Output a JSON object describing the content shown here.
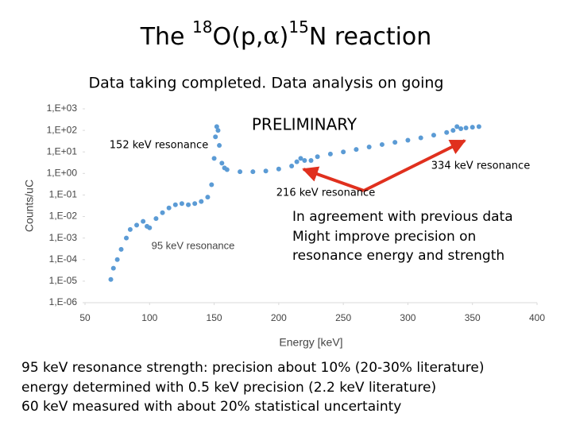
{
  "slide": {
    "title_parts": [
      "The ",
      "18",
      "O(p,",
      "α",
      ")",
      "15",
      "N reaction"
    ],
    "subtitle": "Data taking completed. Data analysis on going",
    "notes": [
      "In agreement with previous data",
      "Might improve precision on",
      "resonance energy and strength"
    ],
    "bullets": [
      "95 keV resonance strength: precision about 10% (20-30% literature)",
      "energy determined with 0.5 keV precision (2.2 keV literature)",
      "60 keV measured with about 20% statistical uncertainty"
    ]
  },
  "chart_data": {
    "type": "scatter",
    "x_label": "Energy [keV]",
    "y_label": "Counts/uC",
    "annotations": [
      "PRELIMINARY",
      "152 keV resonance",
      "334 keV resonance",
      "216 keV resonance",
      "95 keV resonance"
    ],
    "log_y": true,
    "color": "#5b9bd5",
    "xlim": [
      50,
      400
    ],
    "xticks": [
      50,
      100,
      150,
      200,
      250,
      300,
      350,
      400
    ],
    "ylim": [
      1e-06,
      1000
    ],
    "yticks": [
      {
        "value": 1e-06,
        "label": "1,E-06"
      },
      {
        "value": 1e-05,
        "label": "1,E-05"
      },
      {
        "value": 0.0001,
        "label": "1,E-04"
      },
      {
        "value": 0.001,
        "label": "1,E-03"
      },
      {
        "value": 0.01,
        "label": "1,E-02"
      },
      {
        "value": 0.1,
        "label": "1,E-01"
      },
      {
        "value": 1,
        "label": "1,E+00"
      },
      {
        "value": 10,
        "label": "1,E+01"
      },
      {
        "value": 100,
        "label": "1,E+02"
      },
      {
        "value": 1000,
        "label": "1,E+03"
      }
    ],
    "x": [
      70,
      72,
      75,
      78,
      82,
      85,
      90,
      95,
      98,
      100,
      105,
      110,
      115,
      120,
      125,
      130,
      135,
      140,
      145,
      148,
      150,
      151,
      152,
      153,
      154,
      156,
      158,
      160,
      170,
      180,
      190,
      200,
      210,
      214,
      217,
      220,
      225,
      230,
      240,
      250,
      260,
      270,
      280,
      290,
      300,
      310,
      320,
      330,
      335,
      338,
      341,
      345,
      350,
      355
    ],
    "values": [
      1.2e-05,
      4e-05,
      0.0001,
      0.0003,
      0.001,
      0.0025,
      0.004,
      0.006,
      0.0035,
      0.003,
      0.008,
      0.015,
      0.025,
      0.035,
      0.04,
      0.035,
      0.04,
      0.05,
      0.08,
      0.3,
      5,
      50,
      150,
      100,
      20,
      3,
      1.8,
      1.5,
      1.2,
      1.2,
      1.3,
      1.6,
      2.2,
      3.5,
      5,
      4,
      4,
      6,
      8,
      10,
      13,
      17,
      22,
      28,
      35,
      45,
      60,
      80,
      100,
      150,
      120,
      130,
      140,
      150
    ]
  }
}
